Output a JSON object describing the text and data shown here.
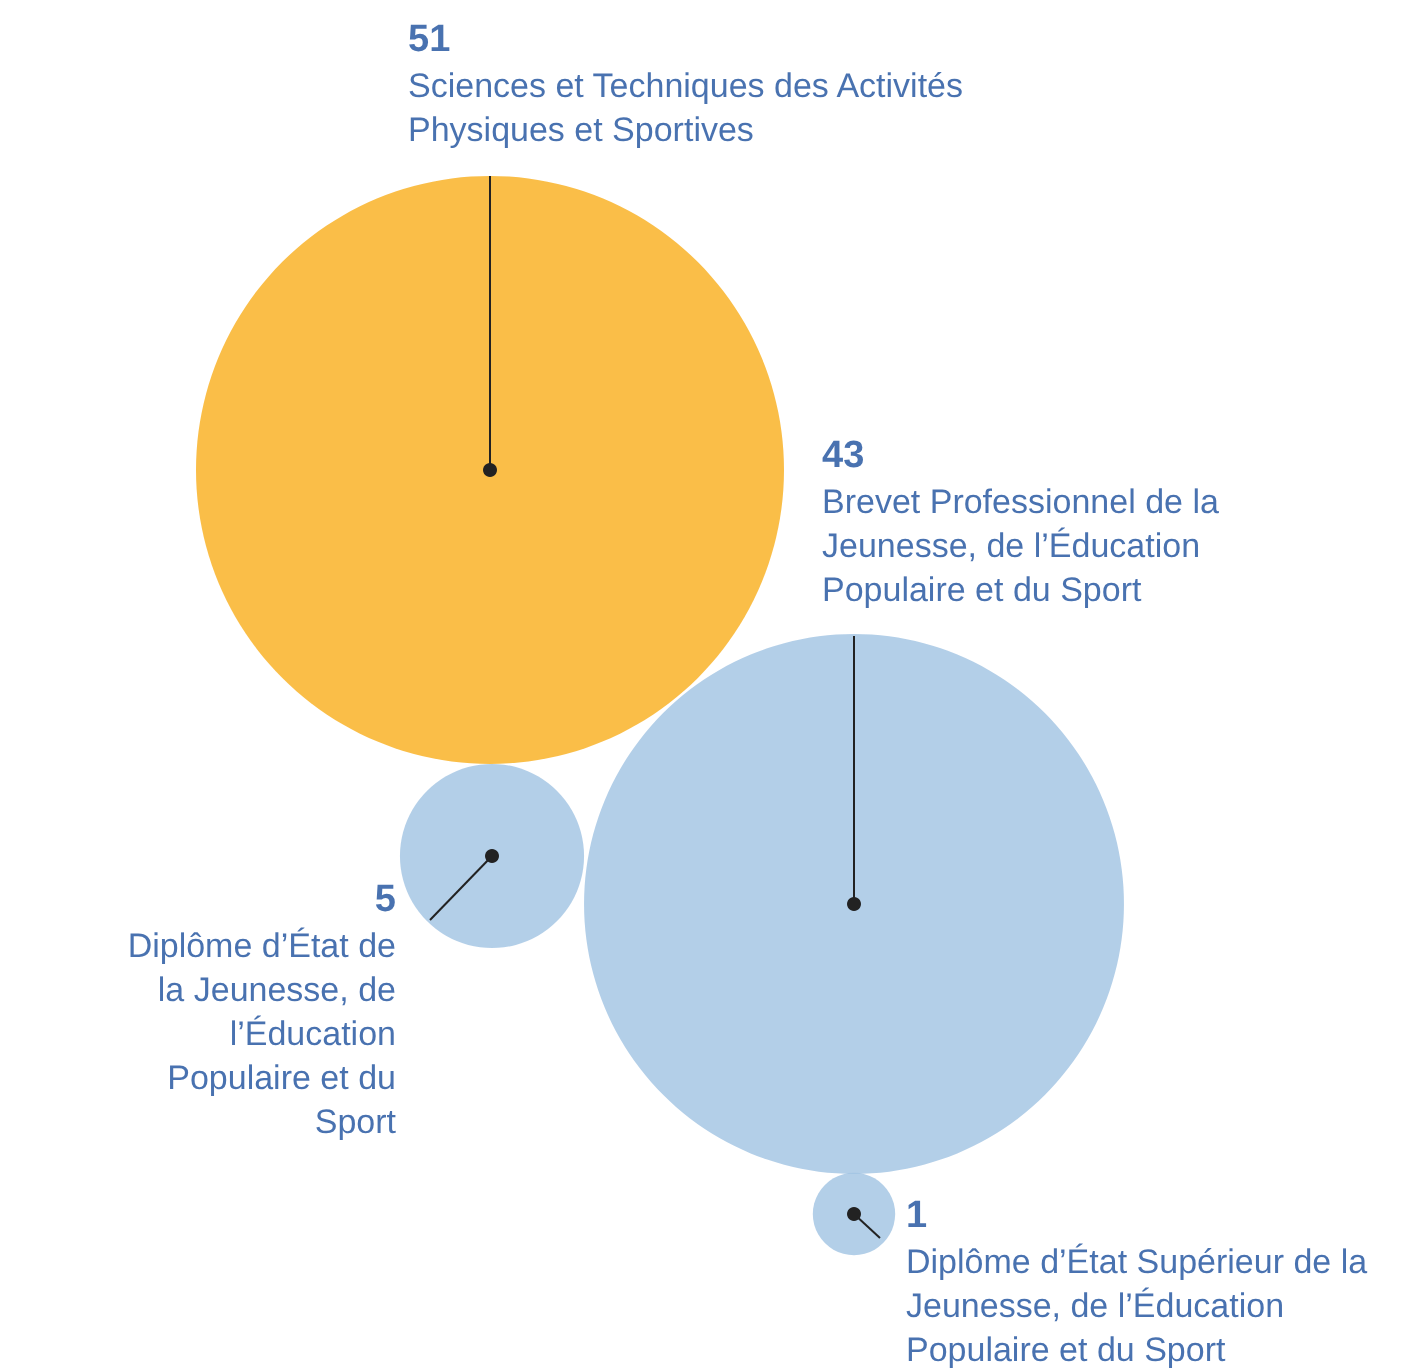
{
  "chart_data": {
    "type": "other",
    "categories": [
      "Sciences et Techniques des Activités Physiques et Sportives",
      "Brevet Professionnel de la Jeunesse, de l’Éducation Populaire et du Sport",
      "Diplôme d’État de la Jeunesse, de l’Éducation Populaire et du Sport",
      "Diplôme d’État Supérieur de la Jeunesse, de l’Éducation Populaire et du Sport"
    ],
    "values": [
      51,
      43,
      5,
      1
    ],
    "colors": [
      "#f9ae1a",
      "#a0c3e2",
      "#a0c3e2",
      "#a0c3e2"
    ],
    "data_labels": true
  }
}
